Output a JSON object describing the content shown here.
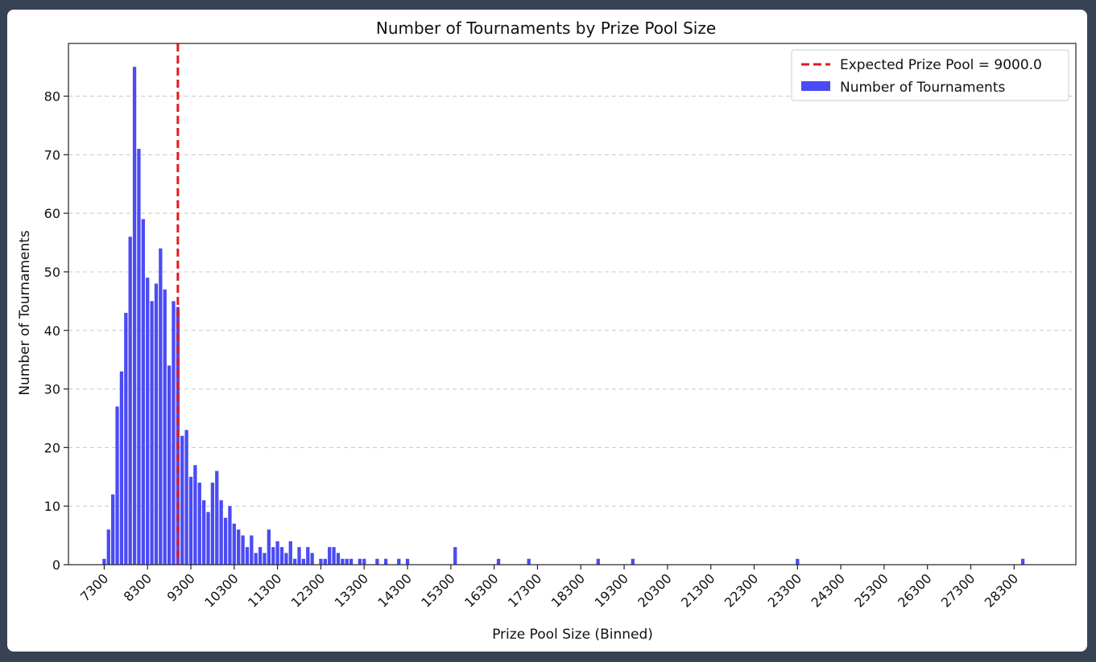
{
  "chart_data": {
    "type": "bar",
    "title": "Number of Tournaments by Prize Pool Size",
    "xlabel": "Prize Pool Size (Binned)",
    "ylabel": "Number of Tournaments",
    "xlim": [
      6475,
      29725
    ],
    "ylim": [
      0,
      89
    ],
    "bin_width": 100,
    "xticks": [
      "7300",
      "8300",
      "9300",
      "10300",
      "11300",
      "12300",
      "13300",
      "14300",
      "15300",
      "16300",
      "17300",
      "18300",
      "19300",
      "20300",
      "21300",
      "22300",
      "23300",
      "24300",
      "25300",
      "26300",
      "27300",
      "28300"
    ],
    "xtick_values": [
      7300,
      8300,
      9300,
      10300,
      11300,
      12300,
      13300,
      14300,
      15300,
      16300,
      17300,
      18300,
      19300,
      20300,
      21300,
      22300,
      23300,
      24300,
      25300,
      26300,
      27300,
      28300
    ],
    "yticks": [
      0,
      10,
      20,
      30,
      40,
      50,
      60,
      70,
      80
    ],
    "grid": "y",
    "legend_position": "top-right",
    "reference_line": {
      "x": 9000,
      "label": "Expected Prize Pool = 9000.0",
      "color": "#e31a1c",
      "style": "dashed"
    },
    "series": [
      {
        "name": "Number of Tournaments",
        "color": "#4b4bf5",
        "x": [
          7300,
          7400,
          7500,
          7600,
          7700,
          7800,
          7900,
          8000,
          8100,
          8200,
          8300,
          8400,
          8500,
          8600,
          8700,
          8800,
          8900,
          9000,
          9100,
          9200,
          9300,
          9400,
          9500,
          9600,
          9700,
          9800,
          9900,
          10000,
          10100,
          10200,
          10300,
          10400,
          10500,
          10600,
          10700,
          10800,
          10900,
          11000,
          11100,
          11200,
          11300,
          11400,
          11500,
          11600,
          11700,
          11800,
          11900,
          12000,
          12100,
          12300,
          12400,
          12500,
          12600,
          12700,
          12800,
          12900,
          13000,
          13200,
          13300,
          13600,
          13800,
          14100,
          14300,
          15400,
          16400,
          17100,
          18700,
          19500,
          23300,
          28500
        ],
        "values": [
          1,
          6,
          12,
          27,
          33,
          43,
          56,
          85,
          71,
          59,
          49,
          45,
          48,
          54,
          47,
          34,
          45,
          44,
          22,
          23,
          15,
          17,
          14,
          11,
          9,
          14,
          16,
          11,
          8,
          10,
          7,
          6,
          5,
          3,
          5,
          2,
          3,
          2,
          6,
          3,
          4,
          3,
          2,
          4,
          1,
          3,
          1,
          3,
          2,
          1,
          1,
          3,
          3,
          2,
          1,
          1,
          1,
          1,
          1,
          1,
          1,
          1,
          1,
          3,
          1,
          1,
          1,
          1,
          1,
          1
        ]
      }
    ]
  }
}
